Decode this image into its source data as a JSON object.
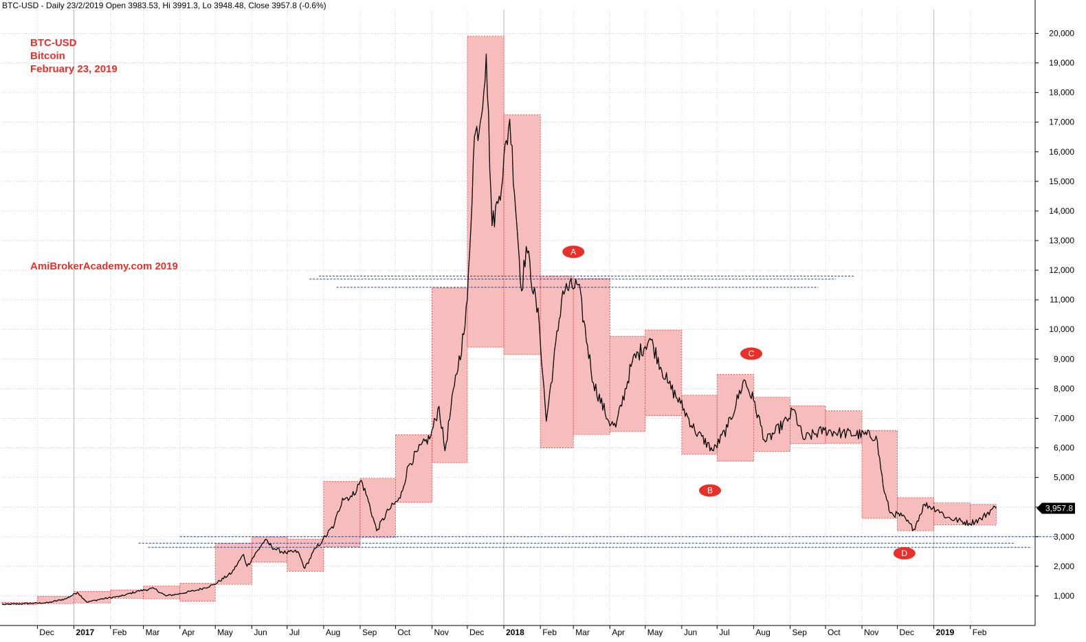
{
  "header": "BTC-USD - Daily 23/2/2019 Open 3983.53, Hi 3991.3, Lo 3948.48, Close 3957.8 (-0.6%)",
  "overlay": {
    "line1": "BTC-USD",
    "line2": "Bitcoin",
    "line3": "February 23, 2019",
    "watermark": "AmiBrokerAcademy.com  2019"
  },
  "last_price_label": "3,957.8",
  "colors": {
    "box_fill": "#f7bcbc",
    "box_stroke": "#e03a3a",
    "marker": "#e8302a",
    "hline": "#1f3d8f",
    "title": "#e8302a"
  },
  "chart_data": {
    "type": "line",
    "ylim": [
      0,
      20800
    ],
    "y_ticks": [
      1000,
      2000,
      3000,
      4000,
      5000,
      6000,
      7000,
      8000,
      9000,
      10000,
      11000,
      12000,
      13000,
      14000,
      15000,
      16000,
      17000,
      18000,
      19000,
      20000
    ],
    "y_tick_labels": [
      "1,000",
      "2,000",
      "3,000",
      "4,000",
      "5,000",
      "6,000",
      "7,000",
      "8,000",
      "9,000",
      "10,000",
      "11,000",
      "12,000",
      "13,000",
      "14,000",
      "15,000",
      "16,000",
      "17,000",
      "18,000",
      "19,000",
      "20,000"
    ],
    "x_ticks": [
      {
        "label": "Dec",
        "date": "2016-12-01",
        "bold": false
      },
      {
        "label": "2017",
        "date": "2017-01-01",
        "bold": true
      },
      {
        "label": "Feb",
        "date": "2017-02-01",
        "bold": false
      },
      {
        "label": "Mar",
        "date": "2017-03-01",
        "bold": false
      },
      {
        "label": "Apr",
        "date": "2017-04-01",
        "bold": false
      },
      {
        "label": "May",
        "date": "2017-05-01",
        "bold": false
      },
      {
        "label": "Jun",
        "date": "2017-06-01",
        "bold": false
      },
      {
        "label": "Jul",
        "date": "2017-07-01",
        "bold": false
      },
      {
        "label": "Aug",
        "date": "2017-08-01",
        "bold": false
      },
      {
        "label": "Sep",
        "date": "2017-09-01",
        "bold": false
      },
      {
        "label": "Oct",
        "date": "2017-10-01",
        "bold": false
      },
      {
        "label": "Nov",
        "date": "2017-11-01",
        "bold": false
      },
      {
        "label": "Dec",
        "date": "2017-12-01",
        "bold": false
      },
      {
        "label": "2018",
        "date": "2018-01-01",
        "bold": true
      },
      {
        "label": "Feb",
        "date": "2018-02-01",
        "bold": false
      },
      {
        "label": "Mar",
        "date": "2018-03-01",
        "bold": false
      },
      {
        "label": "Apr",
        "date": "2018-04-01",
        "bold": false
      },
      {
        "label": "May",
        "date": "2018-05-01",
        "bold": false
      },
      {
        "label": "Jun",
        "date": "2018-06-01",
        "bold": false
      },
      {
        "label": "Jul",
        "date": "2018-07-01",
        "bold": false
      },
      {
        "label": "Aug",
        "date": "2018-08-01",
        "bold": false
      },
      {
        "label": "Sep",
        "date": "2018-09-01",
        "bold": false
      },
      {
        "label": "Oct",
        "date": "2018-10-01",
        "bold": false
      },
      {
        "label": "Nov",
        "date": "2018-11-01",
        "bold": false
      },
      {
        "label": "Dec",
        "date": "2018-12-01",
        "bold": false
      },
      {
        "label": "2019",
        "date": "2019-01-01",
        "bold": true
      },
      {
        "label": "Feb",
        "date": "2019-02-01",
        "bold": false
      }
    ],
    "monthly_boxes": [
      {
        "start": "2016-11-01",
        "end": "2016-12-01",
        "low": 700,
        "high": 780
      },
      {
        "start": "2016-12-01",
        "end": "2017-01-01",
        "low": 740,
        "high": 990
      },
      {
        "start": "2017-01-01",
        "end": "2017-02-01",
        "low": 760,
        "high": 1150
      },
      {
        "start": "2017-02-01",
        "end": "2017-03-01",
        "low": 920,
        "high": 1200
      },
      {
        "start": "2017-03-01",
        "end": "2017-04-01",
        "low": 900,
        "high": 1330
      },
      {
        "start": "2017-04-01",
        "end": "2017-05-01",
        "low": 820,
        "high": 1430
      },
      {
        "start": "2017-05-01",
        "end": "2017-06-01",
        "low": 1390,
        "high": 2770
      },
      {
        "start": "2017-06-01",
        "end": "2017-07-01",
        "low": 2140,
        "high": 2990
      },
      {
        "start": "2017-07-01",
        "end": "2017-08-01",
        "low": 1830,
        "high": 2920
      },
      {
        "start": "2017-08-01",
        "end": "2017-09-01",
        "low": 2660,
        "high": 4870
      },
      {
        "start": "2017-09-01",
        "end": "2017-10-01",
        "low": 2970,
        "high": 4970
      },
      {
        "start": "2017-10-01",
        "end": "2017-11-01",
        "low": 4160,
        "high": 6440
      },
      {
        "start": "2017-11-01",
        "end": "2017-12-01",
        "low": 5500,
        "high": 11400
      },
      {
        "start": "2017-12-01",
        "end": "2018-01-01",
        "low": 9400,
        "high": 19900
      },
      {
        "start": "2018-01-01",
        "end": "2018-02-01",
        "low": 9150,
        "high": 17250
      },
      {
        "start": "2018-02-01",
        "end": "2018-03-01",
        "low": 6000,
        "high": 11800
      },
      {
        "start": "2018-03-01",
        "end": "2018-04-01",
        "low": 6450,
        "high": 11720
      },
      {
        "start": "2018-04-01",
        "end": "2018-05-01",
        "low": 6550,
        "high": 9770
      },
      {
        "start": "2018-05-01",
        "end": "2018-06-01",
        "low": 7090,
        "high": 9980
      },
      {
        "start": "2018-06-01",
        "end": "2018-07-01",
        "low": 5780,
        "high": 7780
      },
      {
        "start": "2018-07-01",
        "end": "2018-08-01",
        "low": 5550,
        "high": 8480
      },
      {
        "start": "2018-08-01",
        "end": "2018-09-01",
        "low": 5880,
        "high": 7710
      },
      {
        "start": "2018-09-01",
        "end": "2018-10-01",
        "low": 6140,
        "high": 7420
      },
      {
        "start": "2018-10-01",
        "end": "2018-11-01",
        "low": 6150,
        "high": 7250
      },
      {
        "start": "2018-11-01",
        "end": "2018-12-01",
        "low": 3620,
        "high": 6580
      },
      {
        "start": "2018-12-01",
        "end": "2019-01-01",
        "low": 3200,
        "high": 4320
      },
      {
        "start": "2019-01-01",
        "end": "2019-02-01",
        "low": 3400,
        "high": 4140
      },
      {
        "start": "2019-02-01",
        "end": "2019-02-23",
        "low": 3390,
        "high": 4090
      }
    ],
    "price_path": [
      {
        "date": "2016-11-01",
        "close": 710
      },
      {
        "date": "2016-11-20",
        "close": 740
      },
      {
        "date": "2016-12-10",
        "close": 770
      },
      {
        "date": "2016-12-25",
        "close": 900
      },
      {
        "date": "2017-01-04",
        "close": 1120
      },
      {
        "date": "2017-01-12",
        "close": 790
      },
      {
        "date": "2017-01-25",
        "close": 900
      },
      {
        "date": "2017-02-10",
        "close": 990
      },
      {
        "date": "2017-02-25",
        "close": 1170
      },
      {
        "date": "2017-03-10",
        "close": 1250
      },
      {
        "date": "2017-03-20",
        "close": 1000
      },
      {
        "date": "2017-03-30",
        "close": 1060
      },
      {
        "date": "2017-04-15",
        "close": 1190
      },
      {
        "date": "2017-04-30",
        "close": 1380
      },
      {
        "date": "2017-05-15",
        "close": 1780
      },
      {
        "date": "2017-05-25",
        "close": 2400
      },
      {
        "date": "2017-05-28",
        "close": 2000
      },
      {
        "date": "2017-06-12",
        "close": 2880
      },
      {
        "date": "2017-06-20",
        "close": 2600
      },
      {
        "date": "2017-06-30",
        "close": 2450
      },
      {
        "date": "2017-07-10",
        "close": 2500
      },
      {
        "date": "2017-07-16",
        "close": 1930
      },
      {
        "date": "2017-07-25",
        "close": 2600
      },
      {
        "date": "2017-07-31",
        "close": 2870
      },
      {
        "date": "2017-08-10",
        "close": 3400
      },
      {
        "date": "2017-08-17",
        "close": 4300
      },
      {
        "date": "2017-08-25",
        "close": 4350
      },
      {
        "date": "2017-09-02",
        "close": 4900
      },
      {
        "date": "2017-09-08",
        "close": 4200
      },
      {
        "date": "2017-09-15",
        "close": 3200
      },
      {
        "date": "2017-09-25",
        "close": 3900
      },
      {
        "date": "2017-10-05",
        "close": 4300
      },
      {
        "date": "2017-10-12",
        "close": 5400
      },
      {
        "date": "2017-10-20",
        "close": 5900
      },
      {
        "date": "2017-10-31",
        "close": 6400
      },
      {
        "date": "2017-11-07",
        "close": 7400
      },
      {
        "date": "2017-11-12",
        "close": 5900
      },
      {
        "date": "2017-11-20",
        "close": 8100
      },
      {
        "date": "2017-11-29",
        "close": 10100
      },
      {
        "date": "2017-12-01",
        "close": 11000
      },
      {
        "date": "2017-12-07",
        "close": 16500
      },
      {
        "date": "2017-12-12",
        "close": 17000
      },
      {
        "date": "2017-12-17",
        "close": 19300
      },
      {
        "date": "2017-12-22",
        "close": 13500
      },
      {
        "date": "2017-12-28",
        "close": 14500
      },
      {
        "date": "2018-01-06",
        "close": 17100
      },
      {
        "date": "2018-01-16",
        "close": 11300
      },
      {
        "date": "2018-01-20",
        "close": 12800
      },
      {
        "date": "2018-01-31",
        "close": 10200
      },
      {
        "date": "2018-02-06",
        "close": 6900
      },
      {
        "date": "2018-02-20",
        "close": 11300
      },
      {
        "date": "2018-03-05",
        "close": 11500
      },
      {
        "date": "2018-03-18",
        "close": 8200
      },
      {
        "date": "2018-03-31",
        "close": 6900
      },
      {
        "date": "2018-04-06",
        "close": 6700
      },
      {
        "date": "2018-04-20",
        "close": 8900
      },
      {
        "date": "2018-05-05",
        "close": 9700
      },
      {
        "date": "2018-05-20",
        "close": 8200
      },
      {
        "date": "2018-05-31",
        "close": 7500
      },
      {
        "date": "2018-06-12",
        "close": 6600
      },
      {
        "date": "2018-06-28",
        "close": 5900
      },
      {
        "date": "2018-07-10",
        "close": 6700
      },
      {
        "date": "2018-07-24",
        "close": 8300
      },
      {
        "date": "2018-08-01",
        "close": 7600
      },
      {
        "date": "2018-08-11",
        "close": 6200
      },
      {
        "date": "2018-08-31",
        "close": 7000
      },
      {
        "date": "2018-09-04",
        "close": 7300
      },
      {
        "date": "2018-09-12",
        "close": 6300
      },
      {
        "date": "2018-09-30",
        "close": 6600
      },
      {
        "date": "2018-10-15",
        "close": 6500
      },
      {
        "date": "2018-11-13",
        "close": 6400
      },
      {
        "date": "2018-11-20",
        "close": 4500
      },
      {
        "date": "2018-11-25",
        "close": 3800
      },
      {
        "date": "2018-12-05",
        "close": 3700
      },
      {
        "date": "2018-12-15",
        "close": 3250
      },
      {
        "date": "2018-12-24",
        "close": 4100
      },
      {
        "date": "2019-01-05",
        "close": 3900
      },
      {
        "date": "2019-01-12",
        "close": 3650
      },
      {
        "date": "2019-01-31",
        "close": 3450
      },
      {
        "date": "2019-02-10",
        "close": 3600
      },
      {
        "date": "2019-02-20",
        "close": 3950
      },
      {
        "date": "2019-02-23",
        "close": 3958
      }
    ],
    "horizontal_lines": [
      {
        "start": "2017-07-20",
        "end": "2018-10-10",
        "y": 11700
      },
      {
        "start": "2017-07-28",
        "end": "2018-10-25",
        "y": 11800
      },
      {
        "start": "2017-08-12",
        "end": "2018-09-25",
        "y": 11420
      },
      {
        "start": "2017-04-01",
        "end": "2019-04-15",
        "y": 3000
      },
      {
        "start": "2017-02-25",
        "end": "2019-03-10",
        "y": 2780
      },
      {
        "start": "2017-03-05",
        "end": "2019-03-25",
        "y": 2640
      }
    ],
    "markers": [
      {
        "label": "A",
        "date": "2018-03-01",
        "y": 12620
      },
      {
        "label": "B",
        "date": "2018-06-25",
        "y": 4560
      },
      {
        "label": "C",
        "date": "2018-07-30",
        "y": 9180
      },
      {
        "label": "D",
        "date": "2018-12-07",
        "y": 2440
      }
    ]
  }
}
